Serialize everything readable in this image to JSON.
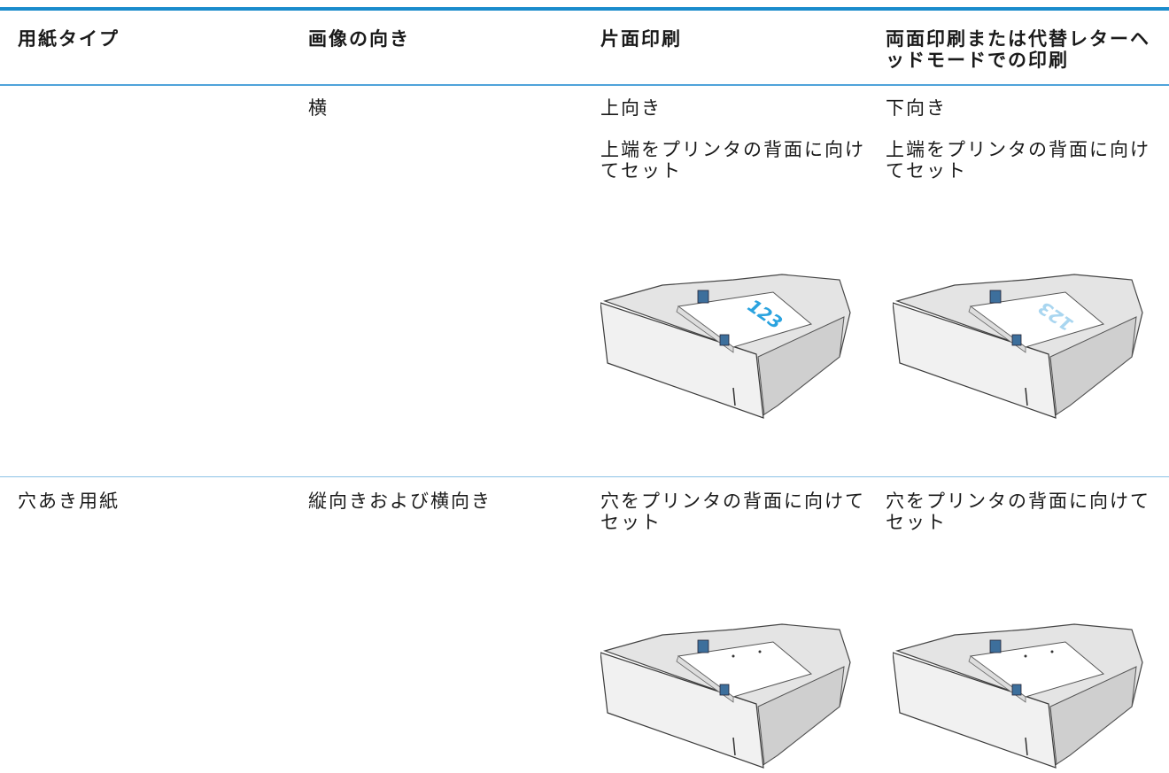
{
  "table": {
    "header": [
      "用紙タイプ",
      "画像の向き",
      "片面印刷",
      "両面印刷または代替レターヘッドモードでの印刷"
    ],
    "rows": [
      {
        "orientation": "横",
        "simplex": [
          "上向き",
          "上端をプリンタの背面に向けてセット"
        ],
        "duplex": [
          "下向き",
          "上端をプリンタの背面に向けてセット"
        ],
        "tray_label": "123"
      },
      {
        "paper_type": "穴あき用紙",
        "orientation": "縦向きおよび横向き",
        "simplex": [
          "穴をプリンタの背面に向けてセット"
        ],
        "duplex": [
          "穴をプリンタの背面に向けてセット"
        ]
      }
    ]
  }
}
